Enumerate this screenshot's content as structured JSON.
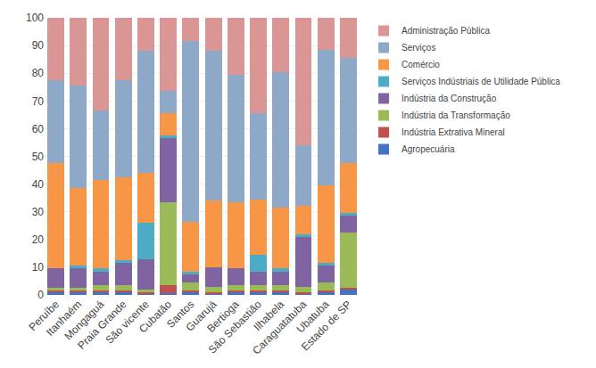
{
  "chart_data": {
    "type": "bar",
    "stacked": true,
    "categories": [
      "Peruíbe",
      "Itanhaém",
      "Mongaguá",
      "Praia Grande",
      "São vicente",
      "Cubatão",
      "Santos",
      "Guarujá",
      "Bertioga",
      "São Sebastião",
      "Ilhabela",
      "Caraguatatuba",
      "Ubatuba",
      "Estado de SP"
    ],
    "series": [
      {
        "name": "Agropecuária",
        "color": "#4472C4",
        "values": [
          1,
          1,
          1,
          1,
          0.5,
          0.5,
          1,
          0.5,
          1,
          1,
          1,
          0.5,
          1,
          2
        ]
      },
      {
        "name": "Indústria Extrativa Mineral",
        "color": "#C0504D",
        "values": [
          0.5,
          0.5,
          0.5,
          0.5,
          0.5,
          3,
          0.5,
          0.5,
          0.5,
          0.5,
          0.5,
          0.5,
          0.5,
          0.5
        ]
      },
      {
        "name": "Indústria da Transformação",
        "color": "#9BBB59",
        "values": [
          1,
          1,
          2,
          2,
          1,
          30,
          3,
          2,
          2,
          2,
          2,
          2,
          3,
          20
        ]
      },
      {
        "name": "Indústria da Construção",
        "color": "#8064A2",
        "values": [
          7,
          7,
          5,
          8,
          11,
          23,
          3,
          7,
          6,
          5,
          5,
          18,
          6,
          6
        ]
      },
      {
        "name": "Serviços Indústriais de Utilidade Pública",
        "color": "#4BACC6",
        "values": [
          0,
          1,
          1,
          1,
          13,
          1,
          1,
          0,
          0,
          6,
          1,
          1,
          1,
          1
        ]
      },
      {
        "name": "Comércio",
        "color": "#F79646",
        "values": [
          38,
          28,
          32,
          30,
          18,
          8,
          18,
          24,
          24,
          20,
          22,
          10,
          28,
          18
        ]
      },
      {
        "name": "Serviços",
        "color": "#8EA9C8",
        "values": [
          30,
          37,
          25,
          35,
          44,
          8,
          65,
          54,
          46,
          31,
          49,
          22,
          49,
          38
        ]
      },
      {
        "name": "Administração Pública",
        "color": "#D99694",
        "values": [
          22.5,
          24.5,
          33.5,
          22.5,
          12,
          26.5,
          8.5,
          12,
          20.5,
          34.5,
          19.5,
          46,
          11.5,
          14.5
        ]
      }
    ],
    "ylim": [
      0,
      100
    ],
    "yticks": [
      0,
      10,
      20,
      30,
      40,
      50,
      60,
      70,
      80,
      90,
      100
    ],
    "grid": true,
    "legend": "upper right"
  }
}
